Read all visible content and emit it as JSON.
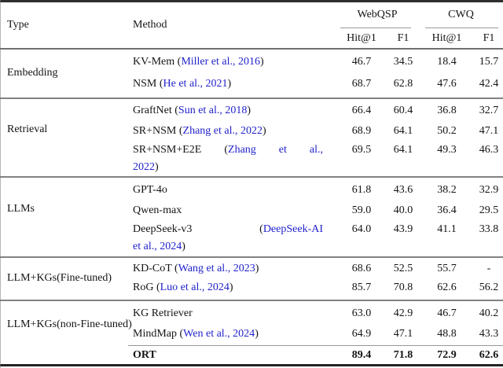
{
  "colors": {
    "link_blue": "#2222cc",
    "text": "#141414",
    "heavy_rule": "#2e2e2e",
    "light_rule": "#828282"
  },
  "table": {
    "headers": {
      "type": "Type",
      "method": "Method",
      "groups": [
        "WebQSP",
        "CWQ"
      ],
      "sub": [
        "Hit@1",
        "F1",
        "Hit@1",
        "F1"
      ]
    },
    "sections": [
      {
        "type": "Embedding",
        "rows": [
          {
            "method": [
              {
                "tokens": [
                  [
                    {
                      "t": "KV-Mem (",
                      "link": false
                    },
                    {
                      "t": "Miller et al., 2016",
                      "link": true
                    },
                    {
                      "t": ")",
                      "link": false
                    }
                  ]
                ]
              }
            ],
            "values": [
              "46.7",
              "34.5",
              "18.4",
              "15.7"
            ]
          },
          {
            "method": [
              {
                "tokens": [
                  [
                    {
                      "t": "NSM (",
                      "link": false
                    },
                    {
                      "t": "He et al., 2021",
                      "link": true
                    },
                    {
                      "t": ")",
                      "link": false
                    }
                  ]
                ]
              }
            ],
            "values": [
              "68.7",
              "62.8",
              "47.6",
              "42.4"
            ]
          }
        ]
      },
      {
        "type": "Retrieval",
        "rows": [
          {
            "method": [
              {
                "tokens": [
                  [
                    {
                      "t": "GraftNet (",
                      "link": false
                    },
                    {
                      "t": "Sun et al., 2018",
                      "link": true
                    },
                    {
                      "t": ")",
                      "link": false
                    }
                  ]
                ]
              }
            ],
            "values": [
              "66.4",
              "60.4",
              "36.8",
              "32.7"
            ]
          },
          {
            "method": [
              {
                "tokens": [
                  [
                    {
                      "t": "SR+NSM (",
                      "link": false
                    },
                    {
                      "t": "Zhang et al., 2022",
                      "link": true
                    },
                    {
                      "t": ")",
                      "link": false
                    }
                  ]
                ]
              }
            ],
            "values": [
              "68.9",
              "64.1",
              "50.2",
              "47.1"
            ]
          },
          {
            "method": [
              {
                "justify": true,
                "tokens": [
                  [
                    {
                      "t": "SR+NSM+E2E",
                      "link": false
                    }
                  ],
                  [
                    {
                      "t": "(",
                      "link": false
                    },
                    {
                      "t": "Zhang",
                      "link": true
                    }
                  ],
                  [
                    {
                      "t": "et",
                      "link": true
                    }
                  ],
                  [
                    {
                      "t": "al.,",
                      "link": true
                    }
                  ]
                ]
              },
              {
                "tokens": [
                  [
                    {
                      "t": "2022",
                      "link": true
                    },
                    {
                      "t": ")",
                      "link": false
                    }
                  ]
                ]
              }
            ],
            "values": [
              "69.5",
              "64.1",
              "49.3",
              "46.3"
            ]
          }
        ]
      },
      {
        "type": "LLMs",
        "rows": [
          {
            "method": [
              {
                "tokens": [
                  [
                    {
                      "t": "GPT-4o",
                      "link": false
                    }
                  ]
                ]
              }
            ],
            "values": [
              "61.8",
              "43.6",
              "38.2",
              "32.9"
            ]
          },
          {
            "method": [
              {
                "tokens": [
                  [
                    {
                      "t": "Qwen-max",
                      "link": false
                    }
                  ]
                ]
              }
            ],
            "values": [
              "59.0",
              "40.0",
              "36.4",
              "29.5"
            ]
          },
          {
            "method": [
              {
                "justify": true,
                "tokens": [
                  [
                    {
                      "t": "DeepSeek-v3",
                      "link": false
                    }
                  ],
                  [
                    {
                      "t": "(",
                      "link": false
                    },
                    {
                      "t": "DeepSeek-AI",
                      "link": true
                    }
                  ]
                ]
              },
              {
                "tokens": [
                  [
                    {
                      "t": "et al., 2024",
                      "link": true
                    },
                    {
                      "t": ")",
                      "link": false
                    }
                  ]
                ]
              }
            ],
            "values": [
              "64.0",
              "43.9",
              "41.1",
              "33.8"
            ]
          }
        ]
      },
      {
        "type": "LLM+KGs(Fine-tuned)",
        "rows": [
          {
            "method": [
              {
                "tokens": [
                  [
                    {
                      "t": "KD-CoT (",
                      "link": false
                    },
                    {
                      "t": "Wang et al., 2023",
                      "link": true
                    },
                    {
                      "t": ")",
                      "link": false
                    }
                  ]
                ]
              }
            ],
            "values": [
              "68.6",
              "52.5",
              "55.7",
              "-"
            ]
          },
          {
            "method": [
              {
                "tokens": [
                  [
                    {
                      "t": "RoG (",
                      "link": false
                    },
                    {
                      "t": "Luo et al., 2024",
                      "link": true
                    },
                    {
                      "t": ")",
                      "link": false
                    }
                  ]
                ]
              }
            ],
            "values": [
              "85.7",
              "70.8",
              "62.6",
              "56.2"
            ]
          }
        ]
      },
      {
        "type": "LLM+KGs(non-Fine-tuned)",
        "rows": [
          {
            "method": [
              {
                "tokens": [
                  [
                    {
                      "t": "KG Retriever",
                      "link": false
                    }
                  ]
                ]
              }
            ],
            "values": [
              "63.0",
              "42.9",
              "46.7",
              "40.2"
            ]
          },
          {
            "method": [
              {
                "tokens": [
                  [
                    {
                      "t": "MindMap (",
                      "link": false
                    },
                    {
                      "t": "Wen et al., 2024",
                      "link": true
                    },
                    {
                      "t": ")",
                      "link": false
                    }
                  ]
                ]
              }
            ],
            "values": [
              "64.9",
              "47.1",
              "48.8",
              "43.3"
            ]
          },
          {
            "method": [
              {
                "tokens": [
                  [
                    {
                      "t": "ORT",
                      "link": false
                    }
                  ]
                ]
              }
            ],
            "values": [
              "89.4",
              "71.8",
              "72.9",
              "62.6"
            ],
            "bold": true,
            "rule_above": true
          }
        ]
      }
    ]
  }
}
